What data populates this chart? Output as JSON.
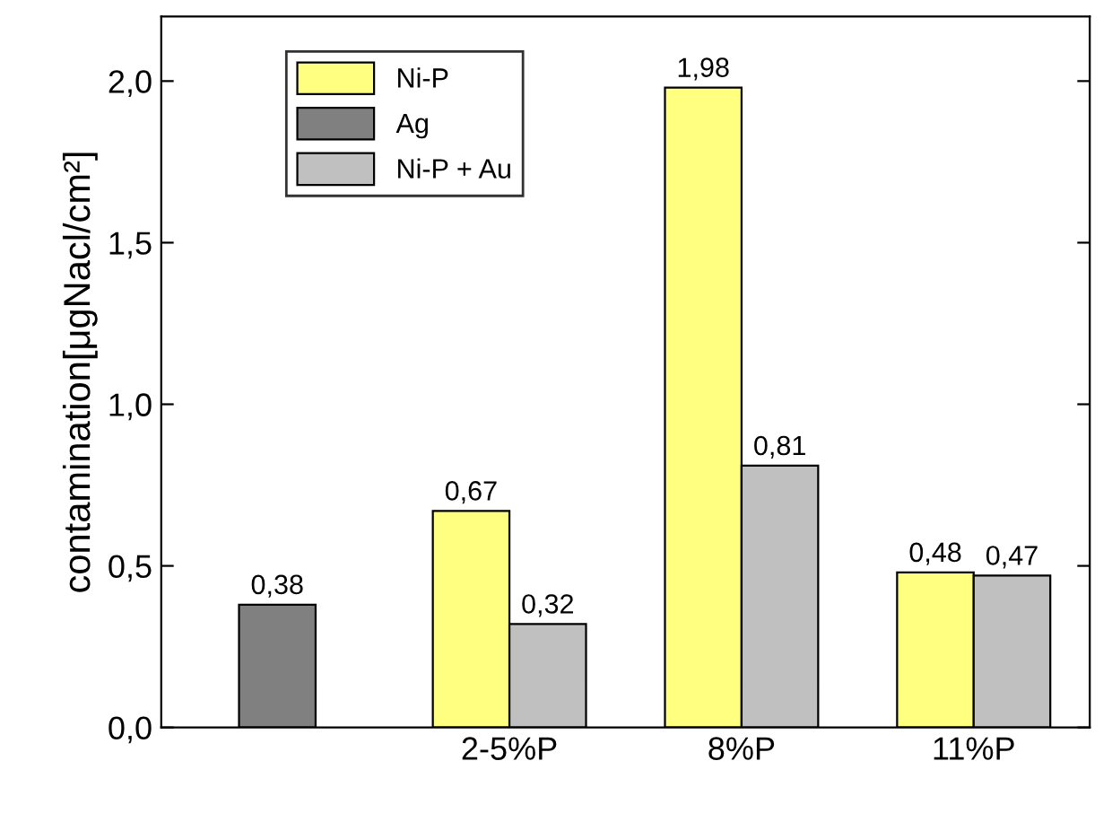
{
  "chart_data": {
    "type": "bar",
    "ylabel": "contamination[μgNacl/cm²]",
    "categories": [
      null,
      "2-5%P",
      "8%P",
      "11%P"
    ],
    "series": [
      {
        "name": "Ni-P",
        "color": "#ffff80",
        "values": [
          null,
          0.67,
          1.98,
          0.48
        ],
        "value_labels": [
          null,
          "0,67",
          "1,98",
          "0,48"
        ]
      },
      {
        "name": "Ag",
        "color": "#808080",
        "values": [
          0.38,
          null,
          null,
          null
        ],
        "value_labels": [
          "0,38",
          null,
          null,
          null
        ]
      },
      {
        "name": "Ni-P + Au",
        "color": "#c0c0c0",
        "values": [
          null,
          0.32,
          0.81,
          0.47
        ],
        "value_labels": [
          null,
          "0,32",
          "0,81",
          "0,47"
        ]
      }
    ],
    "ylim": [
      0,
      2.2
    ],
    "yticks": [
      {
        "value": 0,
        "label": "0,0"
      },
      {
        "value": 0.5,
        "label": "0,5"
      },
      {
        "value": 1.0,
        "label": "1,0"
      },
      {
        "value": 1.5,
        "label": "1,5"
      },
      {
        "value": 2.0,
        "label": "2,0"
      }
    ],
    "grid": false,
    "legend": "top left"
  }
}
